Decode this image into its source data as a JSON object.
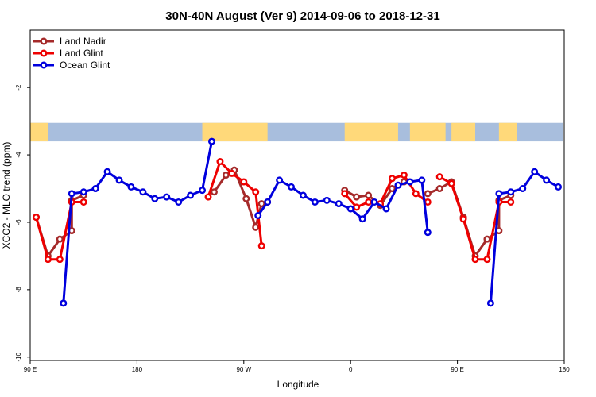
{
  "chart_data": {
    "type": "line",
    "title": "30N-40N August (Ver 9)   2014-09-06 to 2018-12-31",
    "xlabel": "Longitude",
    "ylabel": "XCO2 - MLO trend (ppm)",
    "x_ticks": [
      {
        "value": 90,
        "label": "90 E"
      },
      {
        "value": 180,
        "label": "180"
      },
      {
        "value": 270,
        "label": "90 W"
      },
      {
        "value": 360,
        "label": "0"
      },
      {
        "value": 450,
        "label": "90 E"
      },
      {
        "value": 540,
        "label": "180"
      }
    ],
    "y_ticks": [
      {
        "value": -2,
        "label": "-2"
      },
      {
        "value": -4,
        "label": "-4"
      },
      {
        "value": -6,
        "label": "-6"
      },
      {
        "value": -8,
        "label": "-8"
      },
      {
        "value": -10,
        "label": "-10"
      }
    ],
    "xlim": [
      90,
      540
    ],
    "ylim": [
      -10.1,
      -0.3
    ],
    "legend_position": "top-left",
    "map_band": {
      "y_top": -3.05,
      "y_bottom": -3.6,
      "ocean_color": "#a8bedd",
      "land_color": "#ffd97a"
    },
    "series": [
      {
        "name": "Land Nadir",
        "color": "#a52a2a",
        "segments": [
          [
            [
              95,
              -5.85
            ],
            [
              105,
              -7.0
            ],
            [
              115,
              -6.5
            ],
            [
              125,
              -6.25
            ],
            [
              125,
              -5.35
            ],
            [
              135,
              -5.2
            ]
          ],
          [
            [
              245,
              -5.1
            ],
            [
              255,
              -4.6
            ],
            [
              262,
              -4.45
            ],
            [
              272,
              -5.3
            ],
            [
              280,
              -6.15
            ],
            [
              285,
              -5.45
            ],
            [
              290,
              -5.4
            ]
          ],
          [
            [
              355,
              -5.05
            ],
            [
              365,
              -5.25
            ],
            [
              375,
              -5.2
            ],
            [
              385,
              -5.5
            ],
            [
              395,
              -5.0
            ],
            [
              405,
              -4.8
            ]
          ],
          [
            [
              425,
              -5.15
            ],
            [
              435,
              -5.0
            ],
            [
              445,
              -4.8
            ],
            [
              455,
              -5.85
            ],
            [
              465,
              -7.0
            ],
            [
              475,
              -6.5
            ],
            [
              485,
              -6.25
            ],
            [
              485,
              -5.35
            ],
            [
              495,
              -5.2
            ]
          ]
        ]
      },
      {
        "name": "Land Glint",
        "color": "#ee0000",
        "segments": [
          [
            [
              95,
              -5.85
            ],
            [
              105,
              -7.1
            ],
            [
              115,
              -7.1
            ],
            [
              125,
              -5.4
            ],
            [
              135,
              -5.4
            ]
          ],
          [
            [
              240,
              -5.25
            ],
            [
              250,
              -4.2
            ],
            [
              260,
              -4.55
            ],
            [
              270,
              -4.8
            ],
            [
              280,
              -5.1
            ],
            [
              285,
              -6.7
            ]
          ],
          [
            [
              355,
              -5.15
            ],
            [
              365,
              -5.55
            ],
            [
              375,
              -5.4
            ],
            [
              385,
              -5.45
            ],
            [
              395,
              -4.7
            ],
            [
              405,
              -4.6
            ],
            [
              415,
              -5.15
            ],
            [
              425,
              -5.4
            ]
          ],
          [
            [
              435,
              -4.65
            ],
            [
              445,
              -4.85
            ],
            [
              455,
              -5.9
            ],
            [
              465,
              -7.1
            ],
            [
              475,
              -7.1
            ],
            [
              485,
              -5.4
            ],
            [
              495,
              -5.4
            ]
          ]
        ]
      },
      {
        "name": "Ocean Glint",
        "color": "#0000dd",
        "segments": [
          [
            [
              118,
              -8.4
            ],
            [
              125,
              -5.15
            ],
            [
              135,
              -5.1
            ],
            [
              145,
              -5.0
            ],
            [
              155,
              -4.5
            ],
            [
              165,
              -4.75
            ],
            [
              175,
              -4.95
            ],
            [
              185,
              -5.1
            ],
            [
              195,
              -5.3
            ],
            [
              205,
              -5.25
            ],
            [
              215,
              -5.4
            ],
            [
              225,
              -5.2
            ],
            [
              235,
              -5.05
            ],
            [
              243,
              -3.6
            ]
          ],
          [
            [
              282,
              -5.8
            ],
            [
              290,
              -5.4
            ],
            [
              300,
              -4.75
            ],
            [
              310,
              -4.95
            ],
            [
              320,
              -5.2
            ],
            [
              330,
              -5.4
            ],
            [
              340,
              -5.35
            ],
            [
              350,
              -5.45
            ],
            [
              360,
              -5.6
            ],
            [
              370,
              -5.9
            ],
            [
              380,
              -5.4
            ],
            [
              390,
              -5.6
            ],
            [
              400,
              -4.9
            ],
            [
              410,
              -4.8
            ],
            [
              420,
              -4.75
            ],
            [
              425,
              -6.3
            ]
          ],
          [
            [
              478,
              -8.4
            ],
            [
              485,
              -5.15
            ],
            [
              495,
              -5.1
            ],
            [
              505,
              -5.0
            ],
            [
              515,
              -4.5
            ],
            [
              525,
              -4.75
            ],
            [
              535,
              -4.95
            ]
          ]
        ]
      }
    ]
  }
}
